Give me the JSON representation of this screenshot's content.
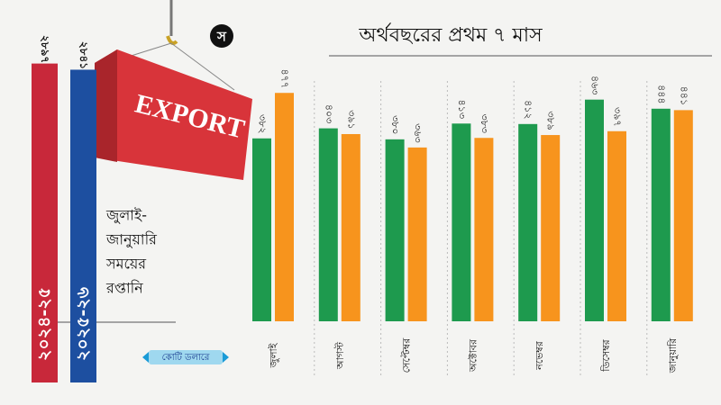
{
  "logo": "স",
  "badge": "EXPORT",
  "caption": [
    "জুলাই-",
    "জানুয়ারি",
    "সময়ের",
    "রপ্তানি"
  ],
  "unit": "কোটি ডলারে",
  "chart_data": {
    "type": "bar",
    "title": "অর্থবছরের প্রথম ৭ মাস",
    "categories": [
      "জুলাই",
      "আগস্ট",
      "সেপ্টেম্বর",
      "অক্টোবর",
      "নভেম্বর",
      "ডিসেম্বর",
      "জানুয়ারি"
    ],
    "series": [
      {
        "name": "২০২৪-২৫",
        "color": "#1e9a4e",
        "total_color": "#c8283a",
        "values": [
          382,
          403,
          380,
          413,
          412,
          463,
          444
        ],
        "value_labels": [
          "৩৮২",
          "৪০৩",
          "৩৮০",
          "৪১৩",
          "৪১২",
          "৪৬৩",
          "৪৪৪"
        ],
        "total": 2897,
        "total_label": "২৮৯৭"
      },
      {
        "name": "২০২৫-২৬",
        "color": "#f7941d",
        "total_color": "#1d4fa0",
        "values": [
          477,
          391,
          363,
          383,
          389,
          397,
          441
        ],
        "value_labels": [
          "৪৭৭",
          "৩৯১",
          "৩৬৩",
          "৩৮৩",
          "৩৮৯",
          "৩৯৭",
          "৪৪১"
        ],
        "total": 2841,
        "total_label": "২৮৪১"
      }
    ],
    "ylim": [
      0,
      500
    ],
    "total_ylim": [
      0,
      3000
    ]
  }
}
